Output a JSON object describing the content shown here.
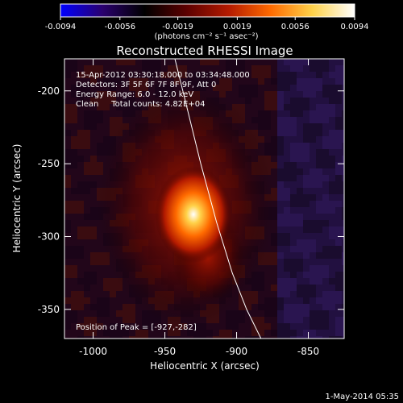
{
  "colorbar": {
    "tick_labels": [
      "-0.0094",
      "-0.0056",
      "-0.0019",
      "0.0019",
      "0.0056",
      "0.0094"
    ],
    "min": -0.0094,
    "max": 0.0094,
    "unit_label": "(photons cm⁻² s⁻¹ asec⁻²)",
    "colormap": [
      "#0000ff",
      "#2a006e",
      "#000000",
      "#5c0000",
      "#b31a00",
      "#ff6a00",
      "#ffd24a",
      "#ffffff"
    ]
  },
  "chart_data": {
    "type": "heatmap",
    "title": "Reconstructed RHESSI Image",
    "xlabel": "Heliocentric X (arcsec)",
    "ylabel": "Heliocentric Y (arcsec)",
    "xlim": [
      -1020,
      -825
    ],
    "ylim": [
      -370,
      -178
    ],
    "x_ticks": [
      -1000,
      -950,
      -900,
      -850
    ],
    "y_ticks": [
      -200,
      -250,
      -300,
      -350
    ],
    "x_tick_labels": [
      "-1000",
      "-950",
      "-900",
      "-850"
    ],
    "y_tick_labels": [
      "-200",
      "-250",
      "-300",
      "-350"
    ],
    "annotations": [
      "15-Apr-2012 03:30:18.000 to 03:34:48.000",
      "Detectors: 3F 5F 6F 7F 8F 9F, Att 0",
      "Energy Range: 6.0 - 12.0 keV",
      "Clean     Total counts: 4.82E+04"
    ],
    "peak_label": "Position of Peak = [-927,-282]",
    "peak": {
      "x": -927,
      "y": -282,
      "value": 0.0094
    },
    "limb_curve": {
      "x": [
        -943,
        -935,
        -925,
        -914,
        -903,
        -893,
        -883
      ],
      "y": [
        -178,
        -210,
        -250,
        -290,
        -325,
        -350,
        -370
      ]
    }
  },
  "footer": {
    "date": "1-May-2014 05:35"
  }
}
